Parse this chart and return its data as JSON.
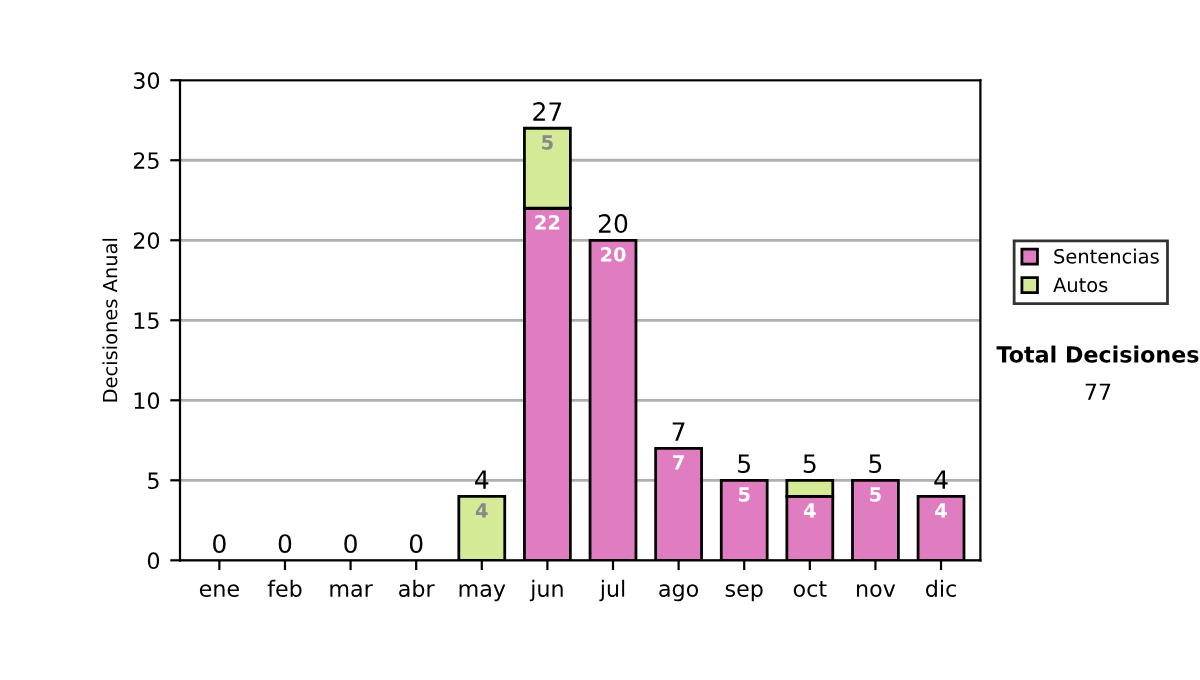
{
  "chart_data": {
    "type": "bar",
    "stacked": true,
    "ylabel": "Decisiones Anual",
    "categories": [
      "ene",
      "feb",
      "mar",
      "abr",
      "may",
      "jun",
      "jul",
      "ago",
      "sep",
      "oct",
      "nov",
      "dic"
    ],
    "series": [
      {
        "name": "Sentencias",
        "color": "#e07cc0",
        "values": [
          0,
          0,
          0,
          0,
          0,
          22,
          20,
          7,
          5,
          4,
          5,
          4
        ],
        "value_labels": [
          null,
          null,
          null,
          null,
          null,
          "22",
          "20",
          "7",
          "5",
          "4",
          "5",
          "4"
        ]
      },
      {
        "name": "Autos",
        "color": "#d4ea96",
        "values": [
          0,
          0,
          0,
          0,
          4,
          5,
          0,
          0,
          0,
          1,
          0,
          0
        ],
        "value_labels": [
          null,
          null,
          null,
          null,
          "4",
          "5",
          null,
          null,
          null,
          null,
          null,
          null
        ]
      }
    ],
    "totals": [
      "0",
      "0",
      "0",
      "0",
      "4",
      "27",
      "20",
      "7",
      "5",
      "5",
      "5",
      "4"
    ],
    "ylim": [
      0,
      30
    ],
    "yticks": [
      0,
      5,
      10,
      15,
      20,
      25,
      30
    ],
    "grid": "y",
    "legend": "right",
    "annotations": [
      "Total Decisiones",
      "77"
    ]
  }
}
